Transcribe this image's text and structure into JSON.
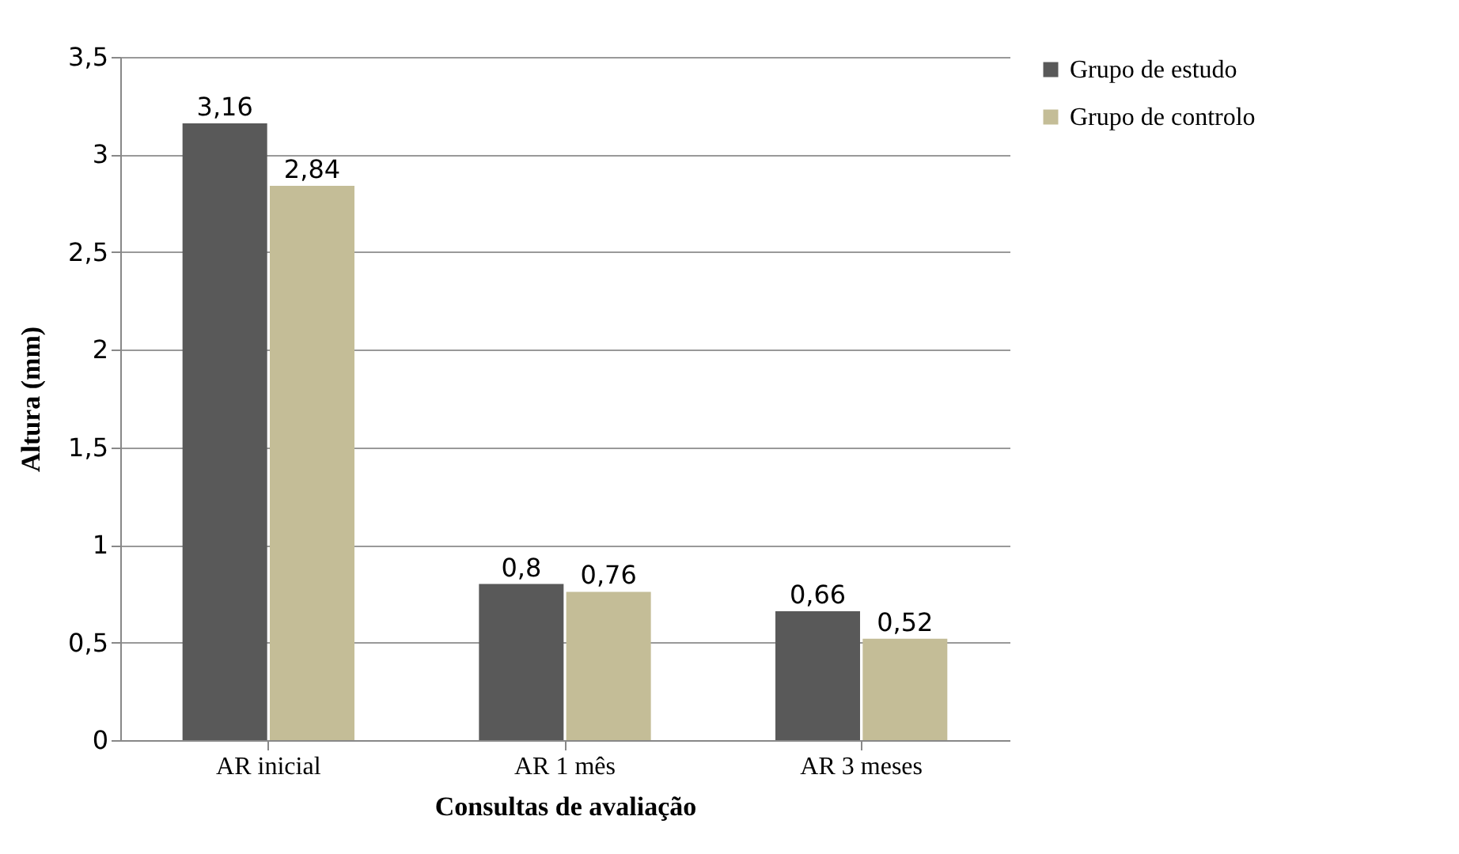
{
  "chart_data": {
    "type": "bar",
    "xlabel": "Consultas de avaliação",
    "ylabel": "Altura (mm)",
    "categories": [
      "AR inicial",
      "AR 1 mês",
      "AR 3 meses"
    ],
    "series": [
      {
        "name": "Grupo de estudo",
        "color": "#595959",
        "values": [
          3.16,
          0.8,
          0.66
        ],
        "value_labels": [
          "3,16",
          "0,8",
          "0,66"
        ]
      },
      {
        "name": "Grupo de controlo",
        "color": "#c4bd97",
        "values": [
          2.84,
          0.76,
          0.52
        ],
        "value_labels": [
          "2,84",
          "0,76",
          "0,52"
        ]
      }
    ],
    "ylim": [
      0,
      3.5
    ],
    "yticks": [
      0,
      {
        "value": 0.5,
        "label": "0,5"
      },
      1,
      {
        "value": 1.5,
        "label": "1,5"
      },
      2,
      {
        "value": 2.5,
        "label": "2,5"
      },
      3,
      {
        "value": 3.5,
        "label": "3,5"
      }
    ],
    "grid": "y",
    "legend": "right"
  }
}
